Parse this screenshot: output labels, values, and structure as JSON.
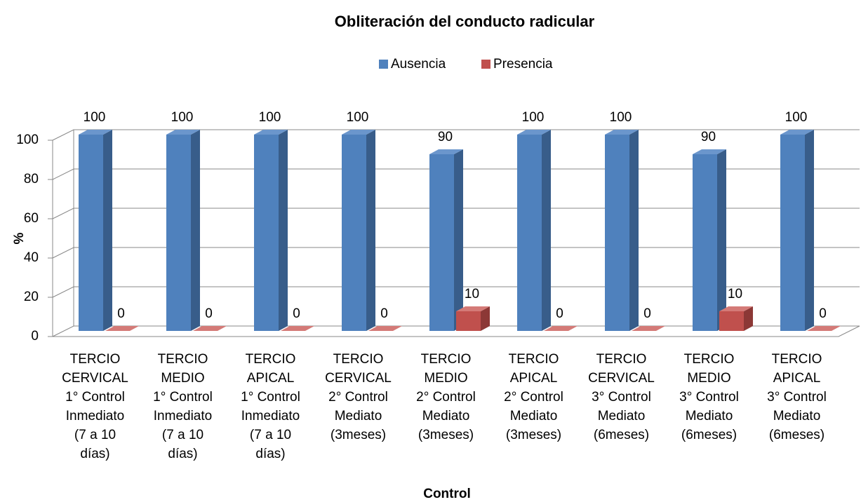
{
  "chart_data": {
    "type": "bar3d",
    "title": "Obliteración del conducto radicular",
    "x_label": "Control",
    "y_label": "%",
    "categories": [
      [
        "TERCIO",
        "CERVICAL",
        "1° Control",
        "Inmediato",
        "(7 a 10",
        "días)"
      ],
      [
        "TERCIO",
        "MEDIO",
        "1° Control",
        "Inmediato",
        "(7 a 10",
        "días)"
      ],
      [
        "TERCIO",
        "APICAL",
        "1° Control",
        "Inmediato",
        "(7 a 10",
        "días)"
      ],
      [
        "TERCIO",
        "CERVICAL",
        "2° Control",
        "Mediato",
        "(3meses)"
      ],
      [
        "TERCIO",
        "MEDIO",
        "2° Control",
        "Mediato",
        "(3meses)"
      ],
      [
        "TERCIO",
        "APICAL",
        "2° Control",
        "Mediato",
        "(3meses)"
      ],
      [
        "TERCIO",
        "CERVICAL",
        "3° Control",
        "Mediato",
        "(6meses)"
      ],
      [
        "TERCIO",
        "MEDIO",
        "3° Control",
        "Mediato",
        "(6meses)"
      ],
      [
        "TERCIO",
        "APICAL",
        "3° Control",
        "Mediato",
        "(6meses)"
      ]
    ],
    "series": [
      {
        "name": "Ausencia",
        "color": "#4f81bd",
        "side_color": "#385d8a",
        "top_color": "#6b96cc",
        "values": [
          100,
          100,
          100,
          100,
          90,
          100,
          100,
          90,
          100
        ]
      },
      {
        "name": "Presencia",
        "color": "#c0504d",
        "side_color": "#8c3836",
        "top_color": "#d47a77",
        "values": [
          0,
          0,
          0,
          0,
          10,
          0,
          0,
          10,
          0
        ]
      }
    ],
    "ylim": [
      0,
      100
    ],
    "yticks": [
      0,
      20,
      40,
      60,
      80,
      100
    ],
    "grid": true,
    "legend": "top"
  }
}
